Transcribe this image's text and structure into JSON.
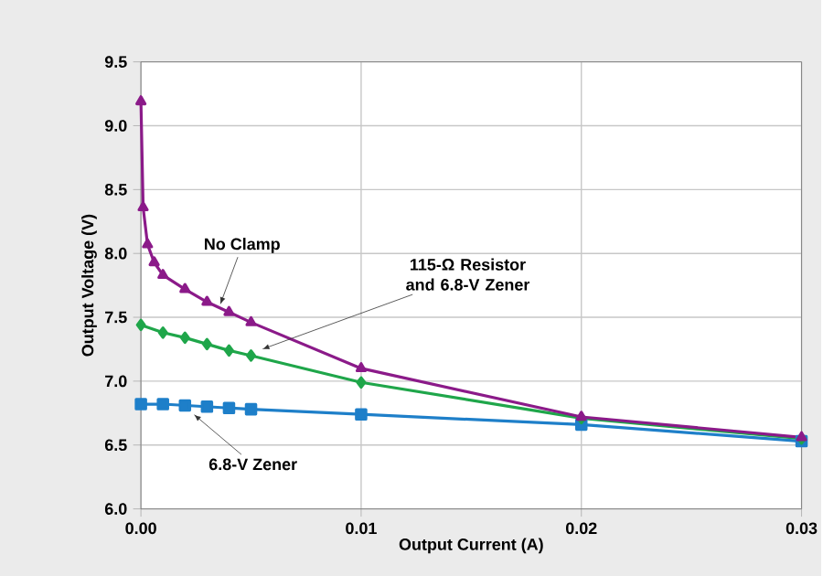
{
  "chart_data": {
    "type": "line",
    "xlabel": "Output Current (A)",
    "ylabel": "Output Voltage (V)",
    "xlim": [
      0,
      0.03
    ],
    "ylim": [
      6.0,
      9.5
    ],
    "xticks": [
      {
        "value": 0,
        "label": "0.00"
      },
      0.01,
      0.02,
      0.03
    ],
    "yticks": [
      {
        "value": 6.0,
        "label": "6.0"
      },
      6.5,
      {
        "value": 7.0,
        "label": "7.0"
      },
      7.5,
      {
        "value": 8.0,
        "label": "8.0"
      },
      8.5,
      {
        "value": 9.0,
        "label": "9.0"
      },
      9.5
    ],
    "grid": true,
    "line_style": "solid",
    "series": [
      {
        "color": "#8b1a89",
        "marker": "triangle",
        "x": [
          0,
          0.0001,
          0.0003,
          0.0006,
          0.001,
          0.002,
          0.003,
          0.004,
          0.005,
          0.01,
          0.02,
          0.03
        ],
        "values": [
          9.19,
          8.36,
          8.07,
          7.93,
          7.83,
          7.72,
          7.62,
          7.54,
          7.46,
          7.1,
          6.72,
          6.56
        ]
      },
      {
        "color": "#1fa64a",
        "marker": "diamond",
        "x": [
          0,
          0.001,
          0.002,
          0.003,
          0.004,
          0.005,
          0.01,
          0.02,
          0.03
        ],
        "values": [
          7.44,
          7.38,
          7.34,
          7.29,
          7.24,
          7.2,
          6.99,
          6.71,
          6.55
        ]
      },
      {
        "color": "#1e7fc9",
        "marker": "square",
        "x": [
          0,
          0.001,
          0.002,
          0.003,
          0.004,
          0.005,
          0.01,
          0.02,
          0.03
        ],
        "values": [
          6.82,
          6.82,
          6.81,
          6.8,
          6.79,
          6.78,
          6.74,
          6.66,
          6.53
        ]
      }
    ],
    "annotations": [
      {
        "text": "No Clamp",
        "x": 0.0036,
        "y": 7.6
      },
      {
        "text": "115-Ω Resistor and 6.8-V Zener",
        "x": 0.0055,
        "y": 7.25
      },
      {
        "text": "6.8-V Zener",
        "x": 0.0024,
        "y": 6.74
      }
    ]
  }
}
